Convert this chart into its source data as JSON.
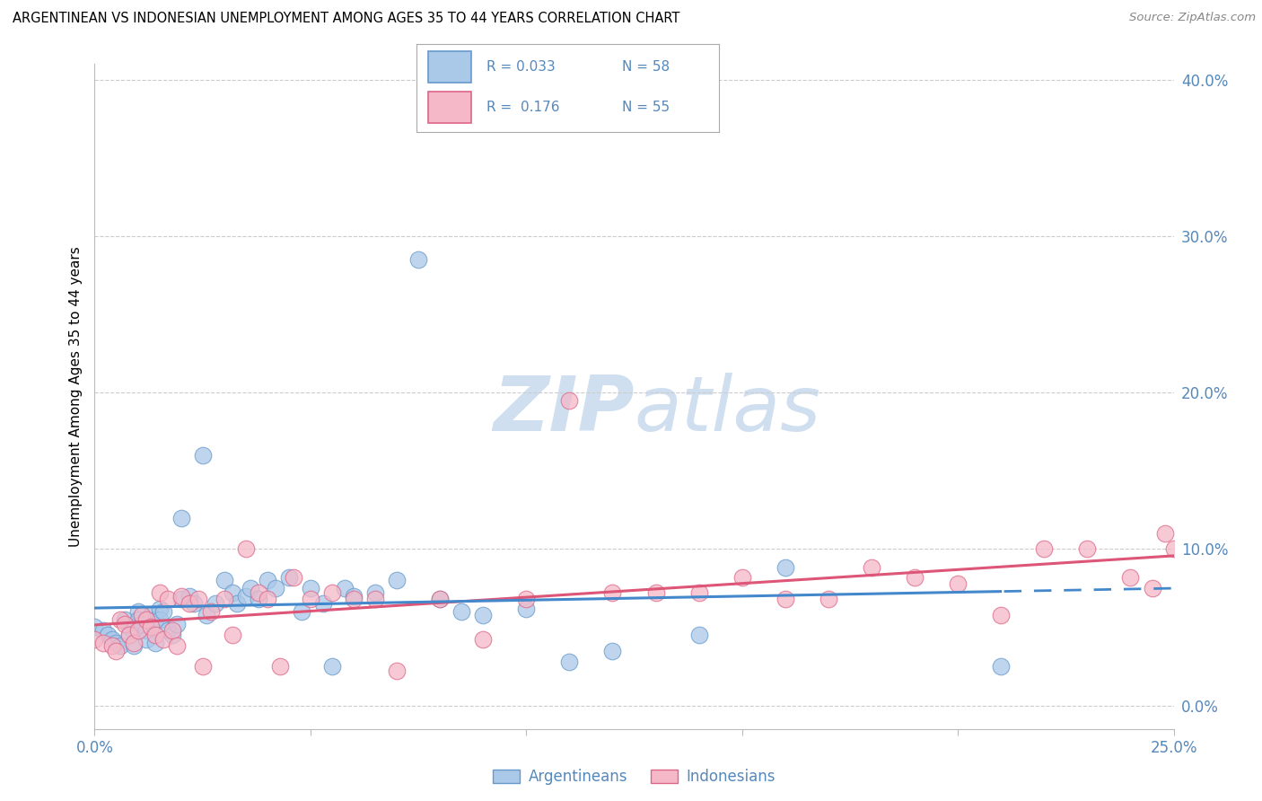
{
  "title": "ARGENTINEAN VS INDONESIAN UNEMPLOYMENT AMONG AGES 35 TO 44 YEARS CORRELATION CHART",
  "source": "Source: ZipAtlas.com",
  "ylabel": "Unemployment Among Ages 35 to 44 years",
  "blue_color": "#aac8e8",
  "pink_color": "#f4b8c8",
  "blue_edge_color": "#6699cc",
  "pink_edge_color": "#dd6688",
  "blue_line_color": "#4488cc",
  "pink_line_color": "#dd5577",
  "watermark_color": "#d0dff0",
  "grid_color": "#cccccc",
  "tick_color": "#5588bb",
  "blue_scatter_x": [
    0.0,
    0.002,
    0.003,
    0.004,
    0.005,
    0.006,
    0.007,
    0.008,
    0.008,
    0.009,
    0.01,
    0.01,
    0.011,
    0.012,
    0.012,
    0.013,
    0.014,
    0.014,
    0.015,
    0.015,
    0.016,
    0.017,
    0.018,
    0.019,
    0.02,
    0.02,
    0.022,
    0.023,
    0.025,
    0.026,
    0.028,
    0.03,
    0.032,
    0.033,
    0.035,
    0.036,
    0.038,
    0.04,
    0.042,
    0.045,
    0.048,
    0.05,
    0.053,
    0.055,
    0.058,
    0.06,
    0.065,
    0.07,
    0.075,
    0.08,
    0.085,
    0.09,
    0.1,
    0.11,
    0.12,
    0.14,
    0.16,
    0.21
  ],
  "blue_scatter_y": [
    0.05,
    0.048,
    0.045,
    0.042,
    0.04,
    0.038,
    0.055,
    0.05,
    0.045,
    0.038,
    0.06,
    0.055,
    0.052,
    0.048,
    0.042,
    0.058,
    0.055,
    0.04,
    0.062,
    0.055,
    0.06,
    0.048,
    0.045,
    0.052,
    0.12,
    0.068,
    0.07,
    0.065,
    0.16,
    0.058,
    0.065,
    0.08,
    0.072,
    0.065,
    0.07,
    0.075,
    0.068,
    0.08,
    0.075,
    0.082,
    0.06,
    0.075,
    0.065,
    0.025,
    0.075,
    0.07,
    0.072,
    0.08,
    0.285,
    0.068,
    0.06,
    0.058,
    0.062,
    0.028,
    0.035,
    0.045,
    0.088,
    0.025
  ],
  "pink_scatter_x": [
    0.0,
    0.002,
    0.004,
    0.005,
    0.006,
    0.007,
    0.008,
    0.009,
    0.01,
    0.011,
    0.012,
    0.013,
    0.014,
    0.015,
    0.016,
    0.017,
    0.018,
    0.019,
    0.02,
    0.022,
    0.024,
    0.025,
    0.027,
    0.03,
    0.032,
    0.035,
    0.038,
    0.04,
    0.043,
    0.046,
    0.05,
    0.055,
    0.06,
    0.065,
    0.07,
    0.08,
    0.09,
    0.1,
    0.11,
    0.12,
    0.13,
    0.14,
    0.15,
    0.16,
    0.17,
    0.18,
    0.19,
    0.2,
    0.21,
    0.22,
    0.23,
    0.24,
    0.245,
    0.248,
    0.25
  ],
  "pink_scatter_y": [
    0.042,
    0.04,
    0.038,
    0.035,
    0.055,
    0.052,
    0.045,
    0.04,
    0.048,
    0.058,
    0.055,
    0.05,
    0.045,
    0.072,
    0.042,
    0.068,
    0.048,
    0.038,
    0.07,
    0.065,
    0.068,
    0.025,
    0.06,
    0.068,
    0.045,
    0.1,
    0.072,
    0.068,
    0.025,
    0.082,
    0.068,
    0.072,
    0.068,
    0.068,
    0.022,
    0.068,
    0.042,
    0.068,
    0.195,
    0.072,
    0.072,
    0.072,
    0.082,
    0.068,
    0.068,
    0.088,
    0.082,
    0.078,
    0.058,
    0.1,
    0.1,
    0.082,
    0.075,
    0.11,
    0.1
  ],
  "xlim": [
    0.0,
    0.25
  ],
  "ylim": [
    -0.015,
    0.41
  ],
  "xtick_vals": [
    0.0,
    0.05,
    0.1,
    0.15,
    0.2,
    0.25
  ],
  "xtick_labels": [
    "0.0%",
    "",
    "",
    "",
    "",
    "25.0%"
  ],
  "ytick_vals": [
    0.0,
    0.1,
    0.2,
    0.3,
    0.4
  ],
  "ytick_labels": [
    "0.0%",
    "10.0%",
    "20.0%",
    "30.0%",
    "40.0%"
  ]
}
